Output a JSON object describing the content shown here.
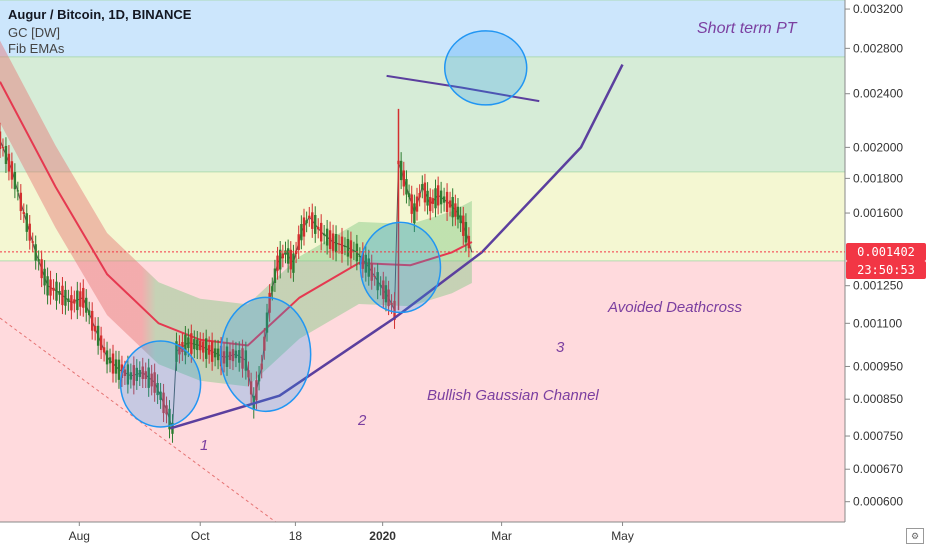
{
  "header": {
    "title": "Augur / Bitcoin, 1D, BINANCE",
    "indicator1": "GC [DW]",
    "indicator2": "Fib EMAs"
  },
  "colors": {
    "up": "#2e7d32",
    "down": "#d32f2f",
    "accent": "#f23645",
    "annotation_text": "#7b3fa0",
    "curve": "#5b3f9e",
    "circle": "#2196f3",
    "zone_top": "#bbdefb",
    "zone_green": "#c8e6c9",
    "zone_yellow": "#f0f4c3",
    "zone_red": "#ffcdd2"
  },
  "price_tags": {
    "last": "0.001402",
    "countdown": "23:50:53"
  },
  "corner_icon": "settings-icon",
  "chart_data": {
    "type": "line",
    "title": "Augur / Bitcoin, 1D, BINANCE",
    "y_scale": "log",
    "ylim": [
      0.00056,
      0.0033
    ],
    "y_ticks": [
      "0.003200",
      "0.002800",
      "0.002400",
      "0.002000",
      "0.001800",
      "0.001600",
      "0.001250",
      "0.001100",
      "0.000950",
      "0.000850",
      "0.000750",
      "0.000670",
      "0.000600"
    ],
    "x_ticks": [
      "Aug",
      "Oct",
      "18",
      "2020",
      "Mar",
      "May"
    ],
    "xlabel": "",
    "ylabel": "",
    "legend": "none",
    "grid": false,
    "zones": [
      {
        "from": 0.00272,
        "to": 0.0033,
        "name": "top"
      },
      {
        "from": 0.00184,
        "to": 0.00272,
        "name": "green"
      },
      {
        "from": 0.00136,
        "to": 0.00184,
        "name": "yellow"
      },
      {
        "from": 0.00056,
        "to": 0.00136,
        "name": "red"
      }
    ],
    "price_series": [
      [
        "2019-06-22",
        0.00205
      ],
      [
        "2019-06-28",
        0.00185
      ],
      [
        "2019-07-04",
        0.0016
      ],
      [
        "2019-07-10",
        0.0014
      ],
      [
        "2019-07-16",
        0.00125
      ],
      [
        "2019-07-22",
        0.00122
      ],
      [
        "2019-07-28",
        0.00118
      ],
      [
        "2019-08-03",
        0.0012
      ],
      [
        "2019-08-09",
        0.00108
      ],
      [
        "2019-08-15",
        0.00098
      ],
      [
        "2019-08-21",
        0.00094
      ],
      [
        "2019-08-27",
        0.00092
      ],
      [
        "2019-09-02",
        0.00093
      ],
      [
        "2019-09-08",
        0.0009
      ],
      [
        "2019-09-14",
        0.00082
      ],
      [
        "2019-09-17",
        0.00077
      ],
      [
        "2019-09-19",
        0.001
      ],
      [
        "2019-09-25",
        0.00103
      ],
      [
        "2019-10-01",
        0.00102
      ],
      [
        "2019-10-07",
        0.001
      ],
      [
        "2019-10-13",
        0.00098
      ],
      [
        "2019-10-19",
        0.00099
      ],
      [
        "2019-10-24",
        0.00097
      ],
      [
        "2019-10-28",
        0.00084
      ],
      [
        "2019-11-01",
        0.00095
      ],
      [
        "2019-11-05",
        0.00118
      ],
      [
        "2019-11-09",
        0.00135
      ],
      [
        "2019-11-13",
        0.0014
      ],
      [
        "2019-11-17",
        0.00135
      ],
      [
        "2019-11-21",
        0.0015
      ],
      [
        "2019-11-25",
        0.00158
      ],
      [
        "2019-12-01",
        0.0015
      ],
      [
        "2019-12-07",
        0.00145
      ],
      [
        "2019-12-13",
        0.00143
      ],
      [
        "2019-12-19",
        0.0014
      ],
      [
        "2019-12-25",
        0.00133
      ],
      [
        "2019-12-31",
        0.00125
      ],
      [
        "2020-01-04",
        0.0012
      ],
      [
        "2020-01-07",
        0.00115
      ],
      [
        "2020-01-09",
        0.0019
      ],
      [
        "2020-01-13",
        0.00175
      ],
      [
        "2020-01-17",
        0.0016
      ],
      [
        "2020-01-21",
        0.00175
      ],
      [
        "2020-01-25",
        0.00165
      ],
      [
        "2020-01-29",
        0.0017
      ],
      [
        "2020-02-04",
        0.00165
      ],
      [
        "2020-02-08",
        0.0016
      ],
      [
        "2020-02-12",
        0.0015
      ],
      [
        "2020-02-15",
        0.0014
      ]
    ],
    "series": [
      {
        "values": [
          [
            "2019-06-22",
            0.0025
          ],
          [
            "2019-07-20",
            0.00175
          ],
          [
            "2019-08-15",
            0.0013
          ],
          [
            "2019-09-10",
            0.0011
          ],
          [
            "2019-10-01",
            0.00104
          ],
          [
            "2019-10-25",
            0.00102
          ],
          [
            "2019-11-20",
            0.0012
          ],
          [
            "2019-12-20",
            0.00135
          ],
          [
            "2020-01-15",
            0.00134
          ],
          [
            "2020-02-05",
            0.0014
          ],
          [
            "2020-02-15",
            0.00145
          ]
        ]
      }
    ],
    "annotations": [
      {
        "text": "Short term PT"
      },
      {
        "text": "Avoided Deathcross"
      },
      {
        "text": "Bullish Gaussian Channel"
      },
      {
        "text": "1"
      },
      {
        "text": "2"
      },
      {
        "text": "3"
      }
    ]
  }
}
